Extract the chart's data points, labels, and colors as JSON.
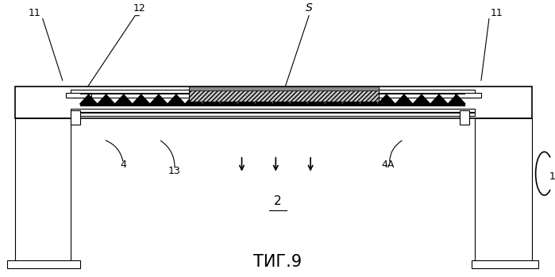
{
  "bg_color": "#ffffff",
  "line_color": "#000000",
  "title": "ΤИГ.9",
  "labels": {
    "11_left": "11",
    "11_right": "11",
    "12": "12",
    "S": "S",
    "4": "4",
    "13": "13",
    "4A": "4A",
    "2": "2",
    "1": "1"
  },
  "figsize": [
    6.99,
    3.49
  ],
  "dpi": 100
}
